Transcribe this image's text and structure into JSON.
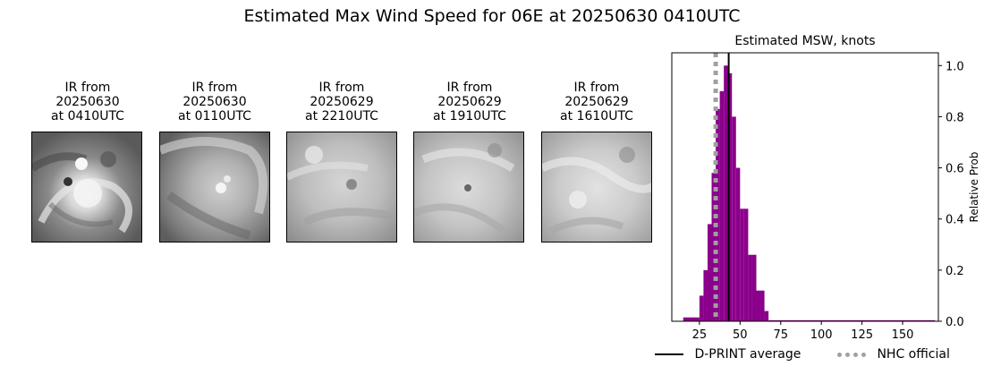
{
  "title": "Estimated Max Wind Speed for 06E at 20250630 0410UTC",
  "ir_panels": [
    {
      "line1": "IR from",
      "line2": "20250630",
      "line3": "at 0410UTC"
    },
    {
      "line1": "IR from",
      "line2": "20250630",
      "line3": "at 0110UTC"
    },
    {
      "line1": "IR from",
      "line2": "20250629",
      "line3": "at 2210UTC"
    },
    {
      "line1": "IR from",
      "line2": "20250629",
      "line3": "at 1910UTC"
    },
    {
      "line1": "IR from",
      "line2": "20250629",
      "line3": "at 1610UTC"
    }
  ],
  "chart_data": {
    "type": "bar",
    "title": "Estimated MSW, knots",
    "xlabel": "",
    "ylabel": "Relative Prob",
    "xlim": [
      8,
      172
    ],
    "ylim": [
      0,
      1.05
    ],
    "xticks": [
      25,
      50,
      75,
      100,
      125,
      150
    ],
    "yticks": [
      0.0,
      0.2,
      0.4,
      0.6,
      0.8,
      1.0
    ],
    "y_axis_side": "right",
    "bar_color": "#8b008b",
    "bins": [
      {
        "x0": 15,
        "x1": 25,
        "y": 0.015
      },
      {
        "x0": 25,
        "x1": 27.5,
        "y": 0.1
      },
      {
        "x0": 27.5,
        "x1": 30,
        "y": 0.2
      },
      {
        "x0": 30,
        "x1": 32.5,
        "y": 0.38
      },
      {
        "x0": 32.5,
        "x1": 35,
        "y": 0.58
      },
      {
        "x0": 35,
        "x1": 37.5,
        "y": 0.83
      },
      {
        "x0": 37.5,
        "x1": 40,
        "y": 0.9
      },
      {
        "x0": 40,
        "x1": 42.5,
        "y": 1.0
      },
      {
        "x0": 42.5,
        "x1": 45,
        "y": 0.97
      },
      {
        "x0": 45,
        "x1": 47.5,
        "y": 0.8
      },
      {
        "x0": 47.5,
        "x1": 50,
        "y": 0.6
      },
      {
        "x0": 50,
        "x1": 52.5,
        "y": 0.44
      },
      {
        "x0": 52.5,
        "x1": 55,
        "y": 0.44
      },
      {
        "x0": 55,
        "x1": 57.5,
        "y": 0.26
      },
      {
        "x0": 57.5,
        "x1": 60,
        "y": 0.26
      },
      {
        "x0": 60,
        "x1": 62.5,
        "y": 0.12
      },
      {
        "x0": 62.5,
        "x1": 65,
        "y": 0.12
      },
      {
        "x0": 65,
        "x1": 67.5,
        "y": 0.04
      },
      {
        "x0": 67.5,
        "x1": 170,
        "y": 0.004
      }
    ],
    "lines": [
      {
        "name": "D-PRINT average",
        "x": 43,
        "color": "#000000",
        "style": "solid"
      },
      {
        "name": "NHC official",
        "x": 35,
        "color": "#a0a0a0",
        "style": "dotted"
      }
    ],
    "legend_placement": "bottom",
    "grid": false
  }
}
